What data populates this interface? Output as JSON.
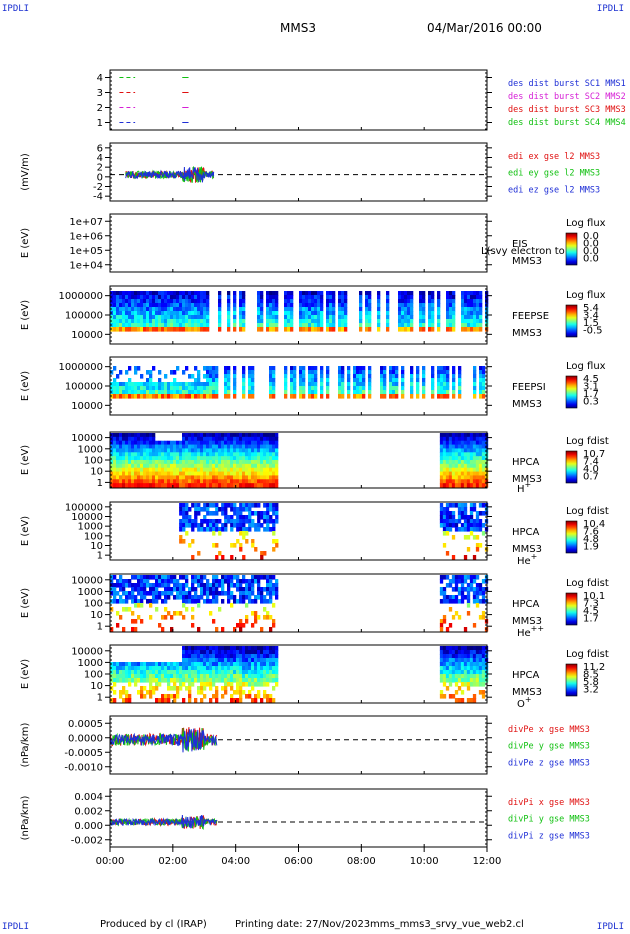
{
  "header": {
    "corner_tl": "IPDLI",
    "corner_tr": "IPDLI",
    "corner_bl": "IPDLI",
    "corner_br": "IPDLI",
    "spacecraft": "MMS3",
    "date": "04/Mar/2016 00:00"
  },
  "footer": {
    "produced": "Produced by cl (IRAP)",
    "printing": "Printing date: 27/Nov/2023",
    "script": "mms_mms3_srvy_vue_web2.cl"
  },
  "chart_data": {
    "type": "stacked-panels",
    "x_axis": {
      "range": [
        "00:00",
        "12:00"
      ],
      "ticks": [
        "00:00",
        "02:00",
        "04:00",
        "06:00",
        "08:00",
        "10:00",
        "12:00"
      ]
    },
    "panels": [
      {
        "id": "burst",
        "type": "scatter",
        "ylabel": "",
        "ylim": [
          0.5,
          4.5
        ],
        "yticks": [
          "1",
          "2",
          "3",
          "4"
        ],
        "series": [
          {
            "name": "des dist burst SC1 MMS1",
            "color": "#1f2fd6",
            "y": 1,
            "segments": [
              [
                0.3,
                0.8
              ],
              [
                2.3,
                2.5
              ]
            ]
          },
          {
            "name": "des dist burst SC2 MMS2",
            "color": "#d61fd6",
            "y": 2,
            "segments": [
              [
                0.3,
                0.8
              ],
              [
                2.3,
                2.5
              ]
            ]
          },
          {
            "name": "des dist burst SC3 MMS3",
            "color": "#e01010",
            "y": 3,
            "segments": [
              [
                0.3,
                0.8
              ],
              [
                2.3,
                2.5
              ]
            ]
          },
          {
            "name": "des dist burst SC4 MMS4",
            "color": "#10c010",
            "y": 4,
            "segments": [
              [
                0.3,
                0.8
              ],
              [
                2.3,
                2.5
              ]
            ]
          }
        ]
      },
      {
        "id": "edi",
        "type": "line",
        "ylabel": "(mV/m)",
        "ylim": [
          -5,
          6
        ],
        "yticks": [
          "-4",
          "-2",
          "0",
          "2",
          "4",
          "6"
        ],
        "zero_line": true,
        "data_span": [
          0.5,
          3.3
        ],
        "amplitude": 2.8,
        "series": [
          {
            "name": "edi ex gse l2 MMS3",
            "color": "#e01010"
          },
          {
            "name": "edi ey gse l2 MMS3",
            "color": "#10c010"
          },
          {
            "name": "edi ez gse l2 MMS3",
            "color": "#1f2fd6"
          }
        ]
      },
      {
        "id": "eis",
        "type": "heatmap",
        "ylabel": "E (eV)",
        "yticks": [
          "1e+04",
          "1e+05",
          "1e+06",
          "1e+07"
        ],
        "instrument": "EIS",
        "sc": "MMS3",
        "cbar_title": "Log flux",
        "cbar_ticks": [
          "0.0",
          "0.0",
          "0.0",
          "0.0"
        ],
        "overlay_text": "L(svy electron to",
        "data_spans": []
      },
      {
        "id": "feeps_e",
        "type": "heatmap",
        "ylabel": "E (eV)",
        "yticks": [
          "10000",
          "100000",
          "1000000"
        ],
        "instrument": "FEEPSE",
        "sc": "MMS3",
        "cbar_title": "Log flux",
        "cbar_ticks": [
          "5.4",
          "3.4",
          "1.5",
          "-0.5"
        ],
        "data_spans": [
          [
            0.0,
            12.0
          ]
        ],
        "style": "feeps"
      },
      {
        "id": "feeps_i",
        "type": "heatmap",
        "ylabel": "E (eV)",
        "yticks": [
          "10000",
          "100000",
          "1000000"
        ],
        "instrument": "FEEPSI",
        "sc": "MMS3",
        "cbar_title": "Log flux",
        "cbar_ticks": [
          "4.5",
          "3.1",
          "1.7",
          "0.3"
        ],
        "data_spans": [
          [
            0.0,
            12.0
          ]
        ],
        "style": "feepsi"
      },
      {
        "id": "hpca_h",
        "type": "heatmap",
        "ylabel": "E (eV)",
        "yticks": [
          "1",
          "10",
          "100",
          "1000",
          "10000"
        ],
        "instrument": "HPCA",
        "sc": "MMS3",
        "species": "H",
        "charge": "+",
        "cbar_title": "Log fdist",
        "cbar_ticks": [
          "10.7",
          "7.4",
          "4.0",
          "0.7"
        ],
        "data_spans": [
          [
            0.0,
            5.3
          ],
          [
            10.5,
            12.0
          ]
        ],
        "style": "h"
      },
      {
        "id": "hpca_he",
        "type": "heatmap",
        "ylabel": "E (eV)",
        "yticks": [
          "1",
          "10",
          "100",
          "1000",
          "10000",
          "100000"
        ],
        "instrument": "HPCA",
        "sc": "MMS3",
        "species": "He",
        "charge": "+",
        "cbar_title": "Log fdist",
        "cbar_ticks": [
          "10.4",
          "7.6",
          "4.8",
          "1.9"
        ],
        "data_spans": [
          [
            2.2,
            5.3
          ],
          [
            10.5,
            12.0
          ]
        ],
        "style": "sparse"
      },
      {
        "id": "hpca_hepp",
        "type": "heatmap",
        "ylabel": "E (eV)",
        "yticks": [
          "1",
          "10",
          "100",
          "1000",
          "10000"
        ],
        "instrument": "HPCA",
        "sc": "MMS3",
        "species": "He",
        "charge": "++",
        "cbar_title": "Log fdist",
        "cbar_ticks": [
          "10.1",
          "7.3",
          "4.5",
          "1.7"
        ],
        "data_spans": [
          [
            0.0,
            5.3
          ],
          [
            10.5,
            12.0
          ]
        ],
        "style": "sparse"
      },
      {
        "id": "hpca_o",
        "type": "heatmap",
        "ylabel": "E (eV)",
        "yticks": [
          "1",
          "10",
          "100",
          "1000",
          "10000"
        ],
        "instrument": "HPCA",
        "sc": "MMS3",
        "species": "O",
        "charge": "+",
        "cbar_title": "Log fdist",
        "cbar_ticks": [
          "11.2",
          "8.5",
          "5.8",
          "3.2"
        ],
        "data_spans": [
          [
            0.0,
            5.3
          ],
          [
            10.5,
            12.0
          ]
        ],
        "style": "o"
      },
      {
        "id": "divpe",
        "type": "line",
        "ylabel": "(nPa/km)",
        "ylim": [
          -0.0013,
          0.0009
        ],
        "yticks": [
          "-0.0010",
          "-0.0005",
          "0.0000",
          "0.0005"
        ],
        "zero_line": true,
        "data_span": [
          0.0,
          3.4
        ],
        "amplitude": 0.0009,
        "series": [
          {
            "name": "divPe x gse MMS3",
            "color": "#e01010"
          },
          {
            "name": "divPe y gse MMS3",
            "color": "#10c010"
          },
          {
            "name": "divPe z gse MMS3",
            "color": "#1f2fd6"
          }
        ]
      },
      {
        "id": "divpi",
        "type": "line",
        "ylabel": "(nPa/km)",
        "ylim": [
          -0.0031,
          0.0041
        ],
        "yticks": [
          "-0.002",
          "0.000",
          "0.002",
          "0.004"
        ],
        "zero_line": true,
        "data_span": [
          0.0,
          3.4
        ],
        "amplitude": 0.0016,
        "series": [
          {
            "name": "divPi x gse MMS3",
            "color": "#e01010"
          },
          {
            "name": "divPi y gse MMS3",
            "color": "#10c010"
          },
          {
            "name": "divPi z gse MMS3",
            "color": "#1f2fd6"
          }
        ]
      }
    ]
  }
}
